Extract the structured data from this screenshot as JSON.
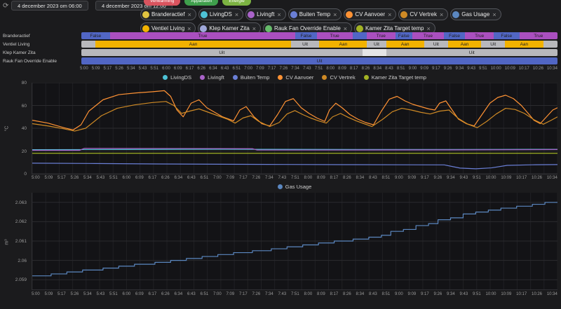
{
  "icons": {
    "close": "×",
    "refresh": "⟳"
  },
  "toolbar": {
    "start_date": "4 december 2023 om 06:00",
    "end_date": "4 december 2023 om 12:00"
  },
  "quick_chips": [
    {
      "label": "Verwarming",
      "color": "#d9545f"
    },
    {
      "label": "Apparaten",
      "color": "#3f9f4c"
    },
    {
      "label": "Energie",
      "color": "#7cb342"
    }
  ],
  "filter_chips": [
    {
      "label": "Branderactief",
      "color": "#e0c340"
    },
    {
      "label": "LivingDS",
      "color": "#4dc2d6"
    },
    {
      "label": "Livingft",
      "color": "#a963c9"
    },
    {
      "label": "Buiten Temp",
      "color": "#6a7fd6"
    },
    {
      "label": "CV Aanvoer",
      "color": "#ff9234"
    },
    {
      "label": "CV Vertrek",
      "color": "#cf8a25"
    },
    {
      "label": "Gas Usage",
      "color": "#5b87c0"
    },
    {
      "label": "Ventiel Living",
      "color": "#f2b200"
    },
    {
      "label": "Klep Kamer Zita",
      "color": "#9fa8da"
    },
    {
      "label": "Rauk Fan Override Enable",
      "color": "#66bb6a"
    },
    {
      "label": "Kamer Zita Target temp",
      "color": "#a3b324"
    }
  ],
  "timeline": {
    "rows": [
      {
        "name": "Branderactief",
        "segments": [
          {
            "label": "False",
            "color": "#5166c4",
            "frac": 0.06
          },
          {
            "label": "True",
            "color": "#aa4fbf",
            "frac": 0.39
          },
          {
            "label": "False",
            "color": "#5166c4",
            "frac": 0.045
          },
          {
            "label": "True",
            "color": "#aa4fbf",
            "frac": 0.075
          },
          {
            "label": "False",
            "color": "#5166c4",
            "frac": 0.03
          },
          {
            "label": "True",
            "color": "#aa4fbf",
            "frac": 0.06
          },
          {
            "label": "False",
            "color": "#5166c4",
            "frac": 0.036
          },
          {
            "label": "True",
            "color": "#aa4fbf",
            "frac": 0.066
          },
          {
            "label": "False",
            "color": "#5166c4",
            "frac": 0.045
          },
          {
            "label": "True",
            "color": "#aa4fbf",
            "frac": 0.06
          },
          {
            "label": "False",
            "color": "#5166c4",
            "frac": 0.054
          },
          {
            "label": "True",
            "color": "#aa4fbf",
            "frac": 0.08
          }
        ]
      },
      {
        "name": "Ventiel Living",
        "segments": [
          {
            "label": "Uit",
            "color": "#b8b8bc",
            "frac": 0.03
          },
          {
            "label": "Aan",
            "color": "#f2b200",
            "frac": 0.41
          },
          {
            "label": "Uit",
            "color": "#b8b8bc",
            "frac": 0.06
          },
          {
            "label": "Aan",
            "color": "#f2b200",
            "frac": 0.1
          },
          {
            "label": "Uit",
            "color": "#b8b8bc",
            "frac": 0.04
          },
          {
            "label": "Aan",
            "color": "#f2b200",
            "frac": 0.08
          },
          {
            "label": "Uit",
            "color": "#b8b8bc",
            "frac": 0.05
          },
          {
            "label": "Aan",
            "color": "#f2b200",
            "frac": 0.07
          },
          {
            "label": "Uit",
            "color": "#b8b8bc",
            "frac": 0.05
          },
          {
            "label": "Aan",
            "color": "#f2b200",
            "frac": 0.08
          },
          {
            "label": "Uit",
            "color": "#b8b8bc",
            "frac": 0.03
          }
        ]
      },
      {
        "name": "Klep Kamer Zita",
        "segments": [
          {
            "label": "Uit",
            "color": "#b8b8bc",
            "frac": 0.59
          },
          {
            "label": "",
            "color": "#e4e4e6",
            "frac": 0.05
          },
          {
            "label": "Uit",
            "color": "#b8b8bc",
            "frac": 0.36
          }
        ]
      },
      {
        "name": "Rauk Fan Override Enable",
        "segments": [
          {
            "label": "Uit",
            "color": "#5166c4",
            "frac": 1.0
          }
        ]
      }
    ]
  },
  "time_axis": [
    "5:00",
    "5:09",
    "5:17",
    "5:26",
    "5:34",
    "5:43",
    "5:51",
    "6:00",
    "6:09",
    "6:17",
    "6:26",
    "6:34",
    "6:43",
    "6:51",
    "7:00",
    "7:09",
    "7:17",
    "7:26",
    "7:34",
    "7:43",
    "7:51",
    "8:00",
    "8:09",
    "8:17",
    "8:26",
    "8:34",
    "8:43",
    "8:51",
    "9:00",
    "9:09",
    "9:17",
    "9:26",
    "9:34",
    "9:43",
    "9:51",
    "10:00",
    "10:09",
    "10:17",
    "10:26",
    "10:34"
  ],
  "chart_data": [
    {
      "id": "temp",
      "type": "line",
      "title": "",
      "xlabel": "",
      "ylabel": "°C",
      "xlim": [
        0,
        334
      ],
      "ylim": [
        0,
        80
      ],
      "grid": true,
      "legend_position": "top-center",
      "yticks": [
        {
          "v": 0,
          "label": "0"
        },
        {
          "v": 20,
          "label": "20"
        },
        {
          "v": 40,
          "label": "40"
        },
        {
          "v": 60,
          "label": "60"
        },
        {
          "v": 80,
          "label": "80"
        }
      ],
      "series": [
        {
          "name": "LivingDS",
          "color": "#4dc2d6",
          "points": [
            [
              0,
              21.2
            ],
            [
              60,
              21.3
            ],
            [
              120,
              21.5
            ],
            [
              180,
              21.4
            ],
            [
              240,
              21.3
            ],
            [
              300,
              21.4
            ],
            [
              334,
              21.5
            ]
          ]
        },
        {
          "name": "Livingft",
          "color": "#a963c9",
          "points": [
            [
              0,
              20.6
            ],
            [
              30,
              20.6
            ],
            [
              33,
              22.3
            ],
            [
              90,
              22.2
            ],
            [
              140,
              22.0
            ],
            [
              143,
              20.9
            ],
            [
              200,
              20.9
            ],
            [
              260,
              21.0
            ],
            [
              320,
              21.2
            ],
            [
              334,
              21.3
            ]
          ]
        },
        {
          "name": "Buiten Temp",
          "color": "#6a7fd6",
          "points": [
            [
              0,
              9.3
            ],
            [
              40,
              9.0
            ],
            [
              80,
              8.6
            ],
            [
              120,
              8.4
            ],
            [
              160,
              8.2
            ],
            [
              200,
              8.0
            ],
            [
              240,
              7.9
            ],
            [
              262,
              7.8
            ],
            [
              272,
              5.0
            ],
            [
              282,
              4.4
            ],
            [
              292,
              5.2
            ],
            [
              302,
              7.4
            ],
            [
              318,
              7.9
            ],
            [
              334,
              8.1
            ]
          ]
        },
        {
          "name": "CV Aanvoer",
          "color": "#ff9234",
          "points": [
            [
              0,
              47
            ],
            [
              10,
              44.5
            ],
            [
              20,
              40.5
            ],
            [
              26,
              38.5
            ],
            [
              31,
              43
            ],
            [
              36,
              55
            ],
            [
              45,
              65
            ],
            [
              55,
              69.5
            ],
            [
              66,
              71
            ],
            [
              76,
              72
            ],
            [
              84,
              73
            ],
            [
              88,
              68
            ],
            [
              92,
              56
            ],
            [
              96,
              50
            ],
            [
              101,
              62
            ],
            [
              106,
              65
            ],
            [
              111,
              58
            ],
            [
              116,
              54
            ],
            [
              121,
              50
            ],
            [
              128,
              46.5
            ],
            [
              132,
              56
            ],
            [
              136,
              59
            ],
            [
              141,
              50
            ],
            [
              146,
              44
            ],
            [
              151,
              42
            ],
            [
              156,
              52
            ],
            [
              161,
              63.5
            ],
            [
              166,
              66
            ],
            [
              171,
              58
            ],
            [
              176,
              53
            ],
            [
              181,
              49
            ],
            [
              186,
              46
            ],
            [
              189,
              56
            ],
            [
              193,
              62
            ],
            [
              197,
              58
            ],
            [
              202,
              52
            ],
            [
              207,
              48
            ],
            [
              212,
              45
            ],
            [
              217,
              43
            ],
            [
              222,
              55
            ],
            [
              227,
              65.5
            ],
            [
              232,
              68
            ],
            [
              237,
              64
            ],
            [
              242,
              61
            ],
            [
              247,
              59
            ],
            [
              252,
              57
            ],
            [
              256,
              56
            ],
            [
              259,
              62
            ],
            [
              263,
              64
            ],
            [
              267,
              56
            ],
            [
              271,
              48
            ],
            [
              276,
              44
            ],
            [
              281,
              42
            ],
            [
              286,
              52
            ],
            [
              291,
              62
            ],
            [
              296,
              67
            ],
            [
              301,
              69
            ],
            [
              306,
              66
            ],
            [
              311,
              60
            ],
            [
              316,
              52
            ],
            [
              319,
              47
            ],
            [
              323,
              44
            ],
            [
              327,
              50
            ],
            [
              331,
              56
            ],
            [
              334,
              58
            ]
          ]
        },
        {
          "name": "CV Vertrek",
          "color": "#cf8a25",
          "points": [
            [
              0,
              44
            ],
            [
              10,
              42
            ],
            [
              20,
              39.5
            ],
            [
              27,
              37.5
            ],
            [
              34,
              40
            ],
            [
              44,
              51
            ],
            [
              54,
              57.5
            ],
            [
              65,
              60.5
            ],
            [
              76,
              62.5
            ],
            [
              85,
              63.5
            ],
            [
              90,
              60
            ],
            [
              95,
              53
            ],
            [
              100,
              55
            ],
            [
              106,
              57
            ],
            [
              112,
              54
            ],
            [
              118,
              51
            ],
            [
              124,
              48
            ],
            [
              129,
              44.5
            ],
            [
              134,
              49
            ],
            [
              139,
              51
            ],
            [
              144,
              46
            ],
            [
              151,
              41.5
            ],
            [
              157,
              45
            ],
            [
              162,
              52.5
            ],
            [
              167,
              55.5
            ],
            [
              172,
              52
            ],
            [
              177,
              49
            ],
            [
              182,
              46.5
            ],
            [
              187,
              44.5
            ],
            [
              191,
              50
            ],
            [
              196,
              53
            ],
            [
              201,
              49.5
            ],
            [
              206,
              46.5
            ],
            [
              211,
              44
            ],
            [
              216,
              41.5
            ],
            [
              223,
              48
            ],
            [
              229,
              54.5
            ],
            [
              235,
              57.5
            ],
            [
              241,
              56
            ],
            [
              247,
              54
            ],
            [
              253,
              52.5
            ],
            [
              259,
              55
            ],
            [
              265,
              56
            ],
            [
              271,
              48.5
            ],
            [
              277,
              43.5
            ],
            [
              283,
              40.5
            ],
            [
              289,
              46
            ],
            [
              295,
              52.5
            ],
            [
              301,
              57.5
            ],
            [
              307,
              56.5
            ],
            [
              313,
              53
            ],
            [
              319,
              47.5
            ],
            [
              325,
              43.5
            ],
            [
              330,
              47
            ],
            [
              334,
              50
            ]
          ]
        },
        {
          "name": "Kamer Zita Target temp",
          "color": "#a3b324",
          "points": [
            [
              0,
              18
            ],
            [
              334,
              18
            ]
          ]
        }
      ]
    },
    {
      "id": "gas",
      "type": "line",
      "step": true,
      "title": "",
      "xlabel": "",
      "ylabel": "m³",
      "xlim": [
        0,
        334
      ],
      "ylim": [
        2.0585,
        2.0635
      ],
      "grid": true,
      "legend_position": "top-center",
      "yticks": [
        {
          "v": 2.059,
          "label": "2.059"
        },
        {
          "v": 2.06,
          "label": "2.06"
        },
        {
          "v": 2.061,
          "label": "2.061"
        },
        {
          "v": 2.062,
          "label": "2.062"
        },
        {
          "v": 2.063,
          "label": "2.063"
        }
      ],
      "series": [
        {
          "name": "Gas Usage",
          "color": "#5b87c0",
          "points": [
            [
              0,
              2.0592
            ],
            [
              12,
              2.0593
            ],
            [
              22,
              2.0594
            ],
            [
              32,
              2.0595
            ],
            [
              45,
              2.0596
            ],
            [
              55,
              2.0597
            ],
            [
              65,
              2.0598
            ],
            [
              78,
              2.0599
            ],
            [
              88,
              2.06
            ],
            [
              98,
              2.0601
            ],
            [
              108,
              2.0602
            ],
            [
              118,
              2.0603
            ],
            [
              128,
              2.0604
            ],
            [
              140,
              2.0605
            ],
            [
              152,
              2.0606
            ],
            [
              162,
              2.0607
            ],
            [
              172,
              2.0608
            ],
            [
              182,
              2.0609
            ],
            [
              192,
              2.061
            ],
            [
              204,
              2.0611
            ],
            [
              214,
              2.0612
            ],
            [
              222,
              2.0613
            ],
            [
              228,
              2.0615
            ],
            [
              236,
              2.0616
            ],
            [
              244,
              2.0618
            ],
            [
              252,
              2.0619
            ],
            [
              258,
              2.0621
            ],
            [
              266,
              2.0622
            ],
            [
              274,
              2.0624
            ],
            [
              282,
              2.0625
            ],
            [
              290,
              2.0626
            ],
            [
              298,
              2.0627
            ],
            [
              308,
              2.0628
            ],
            [
              318,
              2.0629
            ],
            [
              326,
              2.063
            ],
            [
              334,
              2.063
            ]
          ]
        }
      ]
    }
  ]
}
